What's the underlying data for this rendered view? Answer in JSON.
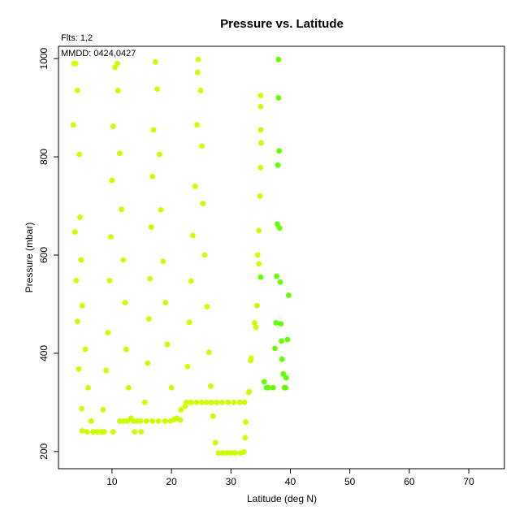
{
  "chart_data": {
    "type": "scatter",
    "title": "Pressure vs. Latitude",
    "subtitle": "Flts: 1,2",
    "annotation": "MMDD: 0424,0427",
    "xlabel": "Latitude (deg N)",
    "ylabel": "Pressure (mbar)",
    "xlim": [
      1,
      76
    ],
    "ylim": [
      1025,
      165
    ],
    "y_inverted": true,
    "grid": false,
    "x_ticks": [
      10,
      20,
      30,
      40,
      50,
      60,
      70
    ],
    "y_ticks": [
      200,
      400,
      600,
      800,
      1000
    ],
    "series": [
      {
        "color": "#ccff00",
        "points": [
          [
            3.6,
            990
          ],
          [
            3.9,
            990
          ],
          [
            4.2,
            935
          ],
          [
            3.5,
            865
          ],
          [
            4.5,
            805
          ],
          [
            4.6,
            677
          ],
          [
            3.8,
            647
          ],
          [
            4.8,
            590
          ],
          [
            4.0,
            548
          ],
          [
            5.0,
            497
          ],
          [
            4.2,
            465
          ],
          [
            5.5,
            408
          ],
          [
            4.4,
            368
          ],
          [
            6.0,
            330
          ],
          [
            4.9,
            287
          ],
          [
            5.0,
            242
          ],
          [
            5.8,
            240
          ],
          [
            6.8,
            240
          ],
          [
            7.5,
            240
          ],
          [
            8.2,
            240
          ],
          [
            8.7,
            240
          ],
          [
            10.2,
            240
          ],
          [
            6.5,
            262
          ],
          [
            8.5,
            285
          ],
          [
            9.0,
            365
          ],
          [
            9.3,
            442
          ],
          [
            9.6,
            548
          ],
          [
            9.8,
            637
          ],
          [
            10.0,
            752
          ],
          [
            10.2,
            862
          ],
          [
            10.5,
            982
          ],
          [
            10.9,
            990
          ],
          [
            11.0,
            935
          ],
          [
            11.3,
            807
          ],
          [
            11.6,
            693
          ],
          [
            11.9,
            590
          ],
          [
            12.2,
            503
          ],
          [
            12.4,
            408
          ],
          [
            12.8,
            330
          ],
          [
            11.3,
            262
          ],
          [
            12.0,
            262
          ],
          [
            12.6,
            262
          ],
          [
            13.2,
            268
          ],
          [
            13.6,
            262
          ],
          [
            14.2,
            262
          ],
          [
            14.8,
            262
          ],
          [
            13.8,
            240
          ],
          [
            14.9,
            240
          ],
          [
            15.5,
            300
          ],
          [
            16.0,
            380
          ],
          [
            16.2,
            470
          ],
          [
            16.4,
            552
          ],
          [
            16.6,
            657
          ],
          [
            16.8,
            760
          ],
          [
            17.0,
            855
          ],
          [
            17.3,
            993
          ],
          [
            17.6,
            938
          ],
          [
            18.0,
            805
          ],
          [
            18.2,
            692
          ],
          [
            18.6,
            587
          ],
          [
            19.0,
            503
          ],
          [
            19.3,
            418
          ],
          [
            20.0,
            330
          ],
          [
            15.8,
            262
          ],
          [
            16.8,
            262
          ],
          [
            17.8,
            262
          ],
          [
            18.9,
            262
          ],
          [
            19.8,
            262
          ],
          [
            20.4,
            265
          ],
          [
            20.9,
            268
          ],
          [
            21.5,
            264
          ],
          [
            21.6,
            285
          ],
          [
            22.3,
            292
          ],
          [
            22.5,
            300
          ],
          [
            23.3,
            300
          ],
          [
            24.2,
            300
          ],
          [
            25.1,
            300
          ],
          [
            25.9,
            300
          ],
          [
            26.7,
            300
          ],
          [
            27.6,
            300
          ],
          [
            28.5,
            300
          ],
          [
            29.5,
            300
          ],
          [
            30.5,
            300
          ],
          [
            31.5,
            300
          ],
          [
            32.3,
            300
          ],
          [
            22.7,
            373
          ],
          [
            23.0,
            463
          ],
          [
            23.3,
            547
          ],
          [
            23.6,
            640
          ],
          [
            24.0,
            740
          ],
          [
            24.3,
            865
          ],
          [
            24.4,
            972
          ],
          [
            24.5,
            998
          ],
          [
            24.9,
            935
          ],
          [
            25.1,
            822
          ],
          [
            25.3,
            705
          ],
          [
            25.6,
            600
          ],
          [
            26.0,
            495
          ],
          [
            26.3,
            402
          ],
          [
            26.6,
            333
          ],
          [
            27.0,
            272
          ],
          [
            27.4,
            218
          ],
          [
            27.9,
            197
          ],
          [
            28.6,
            197
          ],
          [
            29.3,
            197
          ],
          [
            30.0,
            197
          ],
          [
            30.7,
            197
          ],
          [
            31.6,
            197
          ],
          [
            32.2,
            199
          ],
          [
            32.4,
            228
          ],
          [
            32.5,
            260
          ],
          [
            33.0,
            320
          ],
          [
            33.3,
            385
          ],
          [
            34.0,
            462
          ],
          [
            34.2,
            453
          ],
          [
            34.4,
            497
          ],
          [
            34.7,
            582
          ],
          [
            34.5,
            600
          ],
          [
            34.7,
            650
          ],
          [
            34.9,
            720
          ],
          [
            35.0,
            778
          ],
          [
            35.1,
            828
          ],
          [
            35.0,
            855
          ],
          [
            35.0,
            902
          ],
          [
            35.0,
            925
          ],
          [
            33.1,
            322
          ],
          [
            33.4,
            390
          ]
        ]
      },
      {
        "color": "#66ff00",
        "points": [
          [
            35.0,
            555
          ],
          [
            35.6,
            342
          ],
          [
            36.0,
            330
          ],
          [
            36.3,
            330
          ],
          [
            37.1,
            330
          ],
          [
            37.4,
            410
          ],
          [
            37.6,
            462
          ],
          [
            37.7,
            557
          ],
          [
            37.8,
            663
          ],
          [
            37.9,
            783
          ],
          [
            38.0,
            920
          ],
          [
            38.0,
            998
          ],
          [
            38.1,
            812
          ],
          [
            38.2,
            655
          ],
          [
            38.3,
            545
          ],
          [
            38.4,
            460
          ],
          [
            38.5,
            425
          ],
          [
            38.6,
            388
          ],
          [
            38.8,
            358
          ],
          [
            39.0,
            330
          ],
          [
            39.2,
            330
          ],
          [
            39.3,
            350
          ],
          [
            39.5,
            428
          ],
          [
            39.7,
            518
          ]
        ]
      }
    ]
  }
}
